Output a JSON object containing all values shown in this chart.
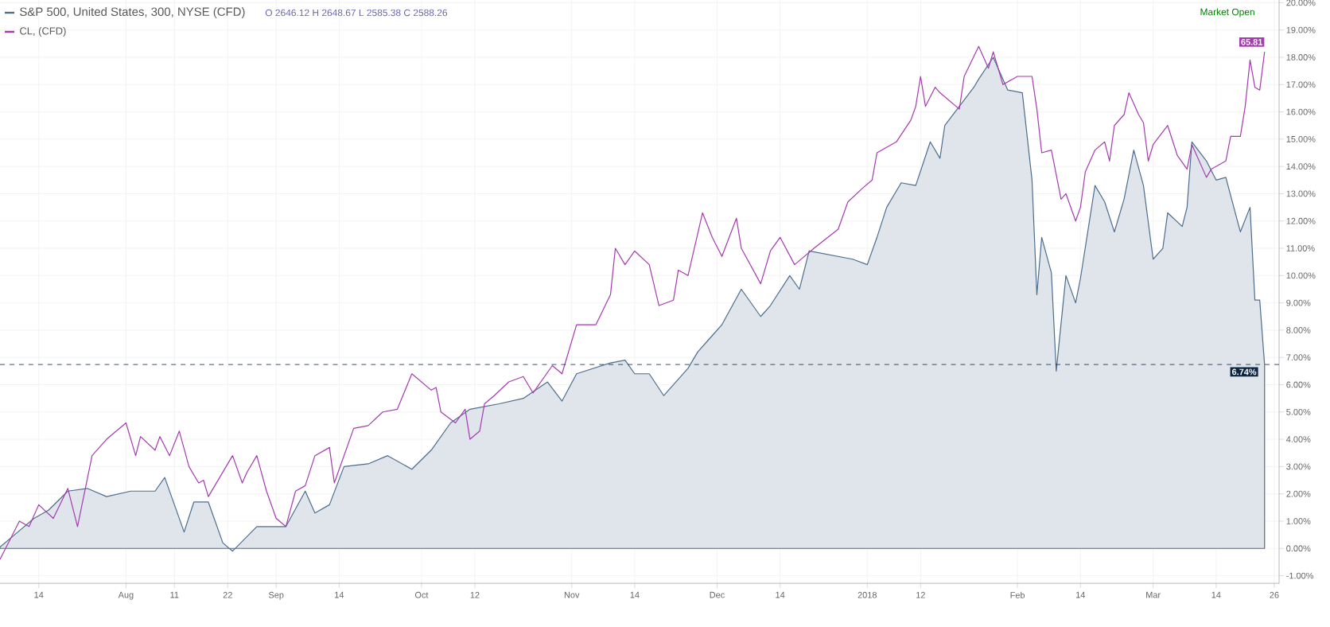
{
  "chart_data": {
    "type": "line",
    "xlim": [
      "2017-07-06",
      "2018-03-27"
    ],
    "ylim": [
      -1.28,
      20.3
    ],
    "xticks": [
      {
        "value": "2017-07-14",
        "label": "14"
      },
      {
        "value": "2017-08-01",
        "label": "Aug"
      },
      {
        "value": "2017-08-11",
        "label": "11"
      },
      {
        "value": "2017-08-22",
        "label": "22"
      },
      {
        "value": "2017-09-01",
        "label": "Sep"
      },
      {
        "value": "2017-09-14",
        "label": "14"
      },
      {
        "value": "2017-10-01",
        "label": "Oct"
      },
      {
        "value": "2017-10-12",
        "label": "12"
      },
      {
        "value": "2017-11-01",
        "label": "Nov"
      },
      {
        "value": "2017-11-14",
        "label": "14"
      },
      {
        "value": "2017-12-01",
        "label": "Dec"
      },
      {
        "value": "2017-12-14",
        "label": "14"
      },
      {
        "value": "2018-01-01",
        "label": "2018"
      },
      {
        "value": "2018-01-12",
        "label": "12"
      },
      {
        "value": "2018-02-01",
        "label": "Feb"
      },
      {
        "value": "2018-02-14",
        "label": "14"
      },
      {
        "value": "2018-03-01",
        "label": "Mar"
      },
      {
        "value": "2018-03-14",
        "label": "14"
      },
      {
        "value": "2018-03-26",
        "label": "26"
      }
    ],
    "yticks": [
      {
        "value": -1,
        "label": "-1.00%"
      },
      {
        "value": 0,
        "label": "0.00%"
      },
      {
        "value": 1,
        "label": "1.00%"
      },
      {
        "value": 2,
        "label": "2.00%"
      },
      {
        "value": 3,
        "label": "3.00%"
      },
      {
        "value": 4,
        "label": "4.00%"
      },
      {
        "value": 5,
        "label": "5.00%"
      },
      {
        "value": 6,
        "label": "6.00%"
      },
      {
        "value": 7,
        "label": "7.00%"
      },
      {
        "value": 8,
        "label": "8.00%"
      },
      {
        "value": 9,
        "label": "9.00%"
      },
      {
        "value": 10,
        "label": "10.00%"
      },
      {
        "value": 11,
        "label": "11.00%"
      },
      {
        "value": 12,
        "label": "12.00%"
      },
      {
        "value": 13,
        "label": "13.00%"
      },
      {
        "value": 14,
        "label": "14.00%"
      },
      {
        "value": 15,
        "label": "15.00%"
      },
      {
        "value": 16,
        "label": "16.00%"
      },
      {
        "value": 17,
        "label": "17.00%"
      },
      {
        "value": 18,
        "label": "18.00%"
      },
      {
        "value": 19,
        "label": "19.00%"
      },
      {
        "value": 20,
        "label": "20.00%"
      }
    ],
    "grid": true,
    "legend": "top left",
    "ref_lines": [
      {
        "axis": "y",
        "value": 6.74,
        "label": "6.74%",
        "color": "#0b2545",
        "line_style": "dashed"
      }
    ],
    "annotations": [
      "O 2646.12 H 2648.67 L 2585.38 C 2588.26",
      "Market Open",
      {
        "text": "65.81",
        "x": "2018-03-24",
        "y": 18.2
      }
    ],
    "series": [
      {
        "name": "S&P 500, United States, 300, NYSE (CFD)",
        "type": "area",
        "color": "#4d6d8f",
        "x": [
          "2017-07-06",
          "2017-07-09",
          "2017-07-13",
          "2017-07-16",
          "2017-07-20",
          "2017-07-24",
          "2017-07-28",
          "2017-08-02",
          "2017-08-07",
          "2017-08-09",
          "2017-08-13",
          "2017-08-15",
          "2017-08-18",
          "2017-08-21",
          "2017-08-23",
          "2017-08-28",
          "2017-09-03",
          "2017-09-07",
          "2017-09-09",
          "2017-09-12",
          "2017-09-15",
          "2017-09-20",
          "2017-09-24",
          "2017-09-29",
          "2017-10-03",
          "2017-10-07",
          "2017-10-11",
          "2017-10-17",
          "2017-10-22",
          "2017-10-27",
          "2017-10-30",
          "2017-11-02",
          "2017-11-09",
          "2017-11-12",
          "2017-11-14",
          "2017-11-17",
          "2017-11-20",
          "2017-11-25",
          "2017-11-27",
          "2017-11-30",
          "2017-12-02",
          "2017-12-06",
          "2017-12-10",
          "2017-12-12",
          "2017-12-16",
          "2017-12-18",
          "2017-12-20",
          "2017-12-29",
          "2018-01-01",
          "2018-01-03",
          "2018-01-05",
          "2018-01-08",
          "2018-01-11",
          "2018-01-14",
          "2018-01-16",
          "2018-01-17",
          "2018-01-23",
          "2018-01-24",
          "2018-01-27",
          "2018-01-30",
          "2018-02-02",
          "2018-02-04",
          "2018-02-05",
          "2018-02-06",
          "2018-02-08",
          "2018-02-09",
          "2018-02-11",
          "2018-02-13",
          "2018-02-14",
          "2018-02-17",
          "2018-02-19",
          "2018-02-21",
          "2018-02-23",
          "2018-02-25",
          "2018-02-27",
          "2018-03-01",
          "2018-03-03",
          "2018-03-04",
          "2018-03-07",
          "2018-03-08",
          "2018-03-09",
          "2018-03-12",
          "2018-03-14",
          "2018-03-16",
          "2018-03-19",
          "2018-03-21",
          "2018-03-22",
          "2018-03-23",
          "2018-03-24"
        ],
        "values": [
          0.05,
          0.5,
          1.1,
          1.4,
          2.1,
          2.2,
          1.9,
          2.1,
          2.1,
          2.6,
          0.6,
          1.7,
          1.7,
          0.2,
          -0.1,
          0.8,
          0.8,
          2.1,
          1.3,
          1.6,
          3.0,
          3.1,
          3.4,
          2.9,
          3.6,
          4.6,
          5.1,
          5.3,
          5.5,
          6.1,
          5.4,
          6.4,
          6.8,
          6.9,
          6.4,
          6.4,
          5.6,
          6.6,
          7.2,
          7.8,
          8.2,
          9.5,
          8.5,
          8.9,
          10.0,
          9.5,
          10.9,
          10.6,
          10.4,
          11.4,
          12.5,
          13.4,
          13.3,
          14.9,
          14.3,
          15.5,
          16.9,
          17.2,
          18.0,
          16.8,
          16.7,
          13.5,
          9.3,
          11.4,
          10.1,
          6.5,
          10.0,
          9.0,
          9.9,
          13.3,
          12.7,
          11.6,
          12.8,
          14.6,
          13.3,
          10.6,
          11.0,
          12.3,
          11.8,
          12.5,
          14.9,
          14.2,
          13.5,
          13.6,
          11.6,
          12.5,
          9.1,
          9.1,
          6.74
        ]
      },
      {
        "name": "CL, (CFD)",
        "type": "line",
        "color": "#a53bb0",
        "x": [
          "2017-07-06",
          "2017-07-10",
          "2017-07-12",
          "2017-07-14",
          "2017-07-17",
          "2017-07-20",
          "2017-07-22",
          "2017-07-25",
          "2017-07-28",
          "2017-08-01",
          "2017-08-03",
          "2017-08-04",
          "2017-08-07",
          "2017-08-08",
          "2017-08-10",
          "2017-08-12",
          "2017-08-14",
          "2017-08-16",
          "2017-08-17",
          "2017-08-18",
          "2017-08-23",
          "2017-08-25",
          "2017-08-26",
          "2017-08-28",
          "2017-08-30",
          "2017-09-01",
          "2017-09-03",
          "2017-09-05",
          "2017-09-07",
          "2017-09-09",
          "2017-09-12",
          "2017-09-13",
          "2017-09-17",
          "2017-09-20",
          "2017-09-23",
          "2017-09-26",
          "2017-09-29",
          "2017-10-01",
          "2017-10-03",
          "2017-10-04",
          "2017-10-05",
          "2017-10-08",
          "2017-10-10",
          "2017-10-11",
          "2017-10-13",
          "2017-10-14",
          "2017-10-16",
          "2017-10-19",
          "2017-10-22",
          "2017-10-24",
          "2017-10-28",
          "2017-10-30",
          "2017-11-02",
          "2017-11-06",
          "2017-11-09",
          "2017-11-10",
          "2017-11-12",
          "2017-11-14",
          "2017-11-17",
          "2017-11-19",
          "2017-11-22",
          "2017-11-23",
          "2017-11-25",
          "2017-11-28",
          "2017-11-30",
          "2017-12-02",
          "2017-12-05",
          "2017-12-06",
          "2017-12-10",
          "2017-12-12",
          "2017-12-14",
          "2017-12-17",
          "2017-12-21",
          "2017-12-26",
          "2017-12-28",
          "2017-12-31",
          "2018-01-02",
          "2018-01-03",
          "2018-01-07",
          "2018-01-10",
          "2018-01-11",
          "2018-01-12",
          "2018-01-13",
          "2018-01-15",
          "2018-01-16",
          "2018-01-20",
          "2018-01-21",
          "2018-01-24",
          "2018-01-26",
          "2018-01-27",
          "2018-01-29",
          "2018-02-01",
          "2018-02-04",
          "2018-02-05",
          "2018-02-06",
          "2018-02-08",
          "2018-02-10",
          "2018-02-11",
          "2018-02-13",
          "2018-02-14",
          "2018-02-15",
          "2018-02-17",
          "2018-02-19",
          "2018-02-20",
          "2018-02-21",
          "2018-02-23",
          "2018-02-24",
          "2018-02-26",
          "2018-02-27",
          "2018-02-28",
          "2018-03-01",
          "2018-03-04",
          "2018-03-06",
          "2018-03-08",
          "2018-03-09",
          "2018-03-12",
          "2018-03-13",
          "2018-03-16",
          "2018-03-17",
          "2018-03-19",
          "2018-03-20",
          "2018-03-21",
          "2018-03-22",
          "2018-03-23",
          "2018-03-24"
        ],
        "values": [
          -0.4,
          1.0,
          0.8,
          1.6,
          1.1,
          2.2,
          0.8,
          3.4,
          4.0,
          4.6,
          3.4,
          4.1,
          3.6,
          4.1,
          3.4,
          4.3,
          3.0,
          2.4,
          2.5,
          1.9,
          3.4,
          2.4,
          2.8,
          3.4,
          2.1,
          1.1,
          0.8,
          2.1,
          2.3,
          3.4,
          3.7,
          2.4,
          4.4,
          4.5,
          5.0,
          5.1,
          6.4,
          6.1,
          5.8,
          5.9,
          5.0,
          4.6,
          5.1,
          4.0,
          4.3,
          5.3,
          5.6,
          6.1,
          6.3,
          5.7,
          6.7,
          6.4,
          8.2,
          8.2,
          9.3,
          11.0,
          10.4,
          10.9,
          10.4,
          8.9,
          9.1,
          10.2,
          10.0,
          12.3,
          11.4,
          10.7,
          12.1,
          11.0,
          9.7,
          10.9,
          11.4,
          10.4,
          11.0,
          11.7,
          12.7,
          13.2,
          13.5,
          14.5,
          14.9,
          15.7,
          16.2,
          17.3,
          16.2,
          16.9,
          16.7,
          16.1,
          17.3,
          18.4,
          17.6,
          18.2,
          17.0,
          17.3,
          17.3,
          16.1,
          14.5,
          14.6,
          12.8,
          13.0,
          12.0,
          12.5,
          13.8,
          14.6,
          14.9,
          14.2,
          15.5,
          15.9,
          16.7,
          15.9,
          15.6,
          14.2,
          14.8,
          15.5,
          14.4,
          13.9,
          14.8,
          13.6,
          13.9,
          14.2,
          15.1,
          15.1,
          16.2,
          17.9,
          16.9,
          16.8,
          18.2
        ]
      }
    ]
  }
}
